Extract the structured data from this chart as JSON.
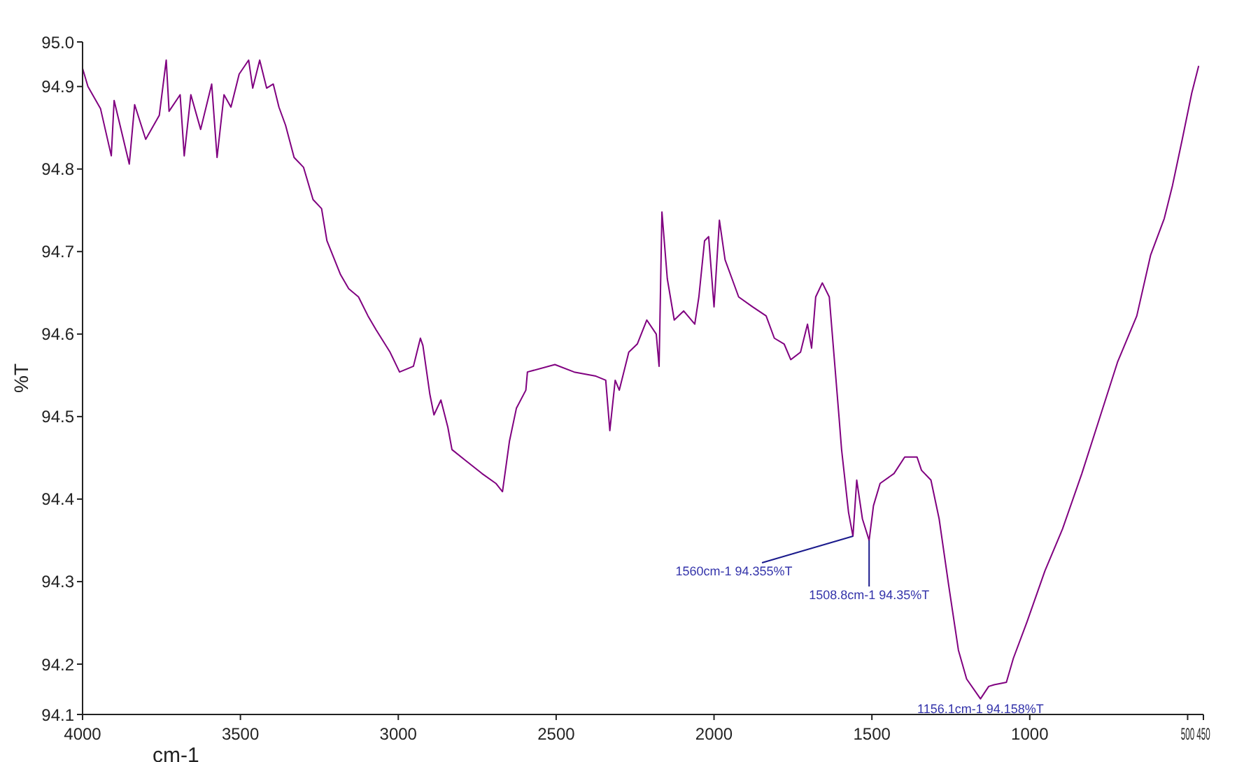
{
  "chart_data": {
    "type": "line",
    "xlabel": "cm-1",
    "ylabel": "%T",
    "xlim": [
      4000,
      450
    ],
    "xticks": [
      4000,
      3500,
      3000,
      2500,
      2000,
      1500,
      1000,
      500,
      450
    ],
    "ylim": [
      94.139,
      94.954
    ],
    "yticks": [
      {
        "value": 94.139,
        "label": "94.1"
      },
      94.2,
      94.3,
      94.4,
      94.5,
      94.6,
      94.7,
      94.8,
      94.9,
      {
        "value": 94.954,
        "label": "95.0"
      }
    ],
    "grid": false,
    "legend": false,
    "marker": "none",
    "line_style": "solid",
    "x": [
      4000,
      3983,
      3943,
      3909,
      3900,
      3852,
      3835,
      3800,
      3757,
      3735,
      3726,
      3691,
      3678,
      3657,
      3626,
      3591,
      3574,
      3552,
      3530,
      3504,
      3474,
      3461,
      3439,
      3417,
      3396,
      3378,
      3357,
      3330,
      3300,
      3270,
      3243,
      3226,
      3183,
      3157,
      3126,
      3096,
      3070,
      3026,
      2996,
      2952,
      2930,
      2922,
      2900,
      2887,
      2865,
      2843,
      2830,
      2791,
      2735,
      2691,
      2670,
      2648,
      2626,
      2596,
      2591,
      2504,
      2443,
      2374,
      2343,
      2330,
      2313,
      2300,
      2270,
      2243,
      2213,
      2183,
      2174,
      2165,
      2148,
      2126,
      2096,
      2061,
      2048,
      2030,
      2017,
      2000,
      1983,
      1965,
      1943,
      1922,
      1878,
      1835,
      1809,
      1778,
      1757,
      1726,
      1704,
      1691,
      1678,
      1657,
      1635,
      1604,
      1596,
      1574,
      1560,
      1548,
      1530,
      1508.8,
      1495,
      1474,
      1430,
      1396,
      1357,
      1343,
      1313,
      1287,
      1257,
      1226,
      1200,
      1156.1,
      1130,
      1113,
      1074,
      1052,
      1009,
      952,
      896,
      835,
      778,
      722,
      661,
      617,
      574,
      548,
      517,
      487,
      465
    ],
    "series": [
      {
        "color": "#800080",
        "values": [
          94.922,
          94.9,
          94.873,
          94.816,
          94.883,
          94.806,
          94.878,
          94.836,
          94.865,
          94.932,
          94.87,
          94.89,
          94.816,
          94.89,
          94.848,
          94.903,
          94.814,
          94.89,
          94.875,
          94.915,
          94.932,
          94.898,
          94.932,
          94.898,
          94.903,
          94.875,
          94.853,
          94.814,
          94.802,
          94.763,
          94.752,
          94.713,
          94.672,
          94.655,
          94.645,
          94.622,
          94.605,
          94.578,
          94.554,
          94.561,
          94.595,
          94.586,
          94.527,
          94.502,
          94.52,
          94.487,
          94.46,
          94.448,
          94.431,
          94.419,
          94.409,
          94.47,
          94.51,
          94.532,
          94.554,
          94.563,
          94.554,
          94.549,
          94.544,
          94.483,
          94.544,
          94.532,
          94.578,
          94.588,
          94.617,
          94.6,
          94.561,
          94.748,
          94.667,
          94.617,
          94.628,
          94.612,
          94.645,
          94.713,
          94.718,
          94.633,
          94.738,
          94.69,
          94.667,
          94.645,
          94.633,
          94.622,
          94.595,
          94.588,
          94.569,
          94.578,
          94.612,
          94.583,
          94.645,
          94.662,
          94.645,
          94.499,
          94.46,
          94.384,
          94.355,
          94.423,
          94.376,
          94.35,
          94.392,
          94.419,
          94.431,
          94.451,
          94.451,
          94.435,
          94.423,
          94.376,
          94.296,
          94.217,
          94.182,
          94.158,
          94.173,
          94.175,
          94.178,
          94.207,
          94.251,
          94.313,
          94.364,
          94.431,
          94.499,
          94.566,
          94.622,
          94.696,
          94.74,
          94.78,
          94.836,
          94.892,
          94.925
        ]
      }
    ],
    "annotations": [
      {
        "text": "1560cm-1 94.355%T",
        "x": 1560,
        "y": 94.355
      },
      {
        "text": "1508.8cm-1 94.35%T",
        "x": 1508.8,
        "y": 94.35
      },
      {
        "text": "1156.1cm-1 94.158%T",
        "x": 1156.1,
        "y": 94.158
      }
    ]
  }
}
